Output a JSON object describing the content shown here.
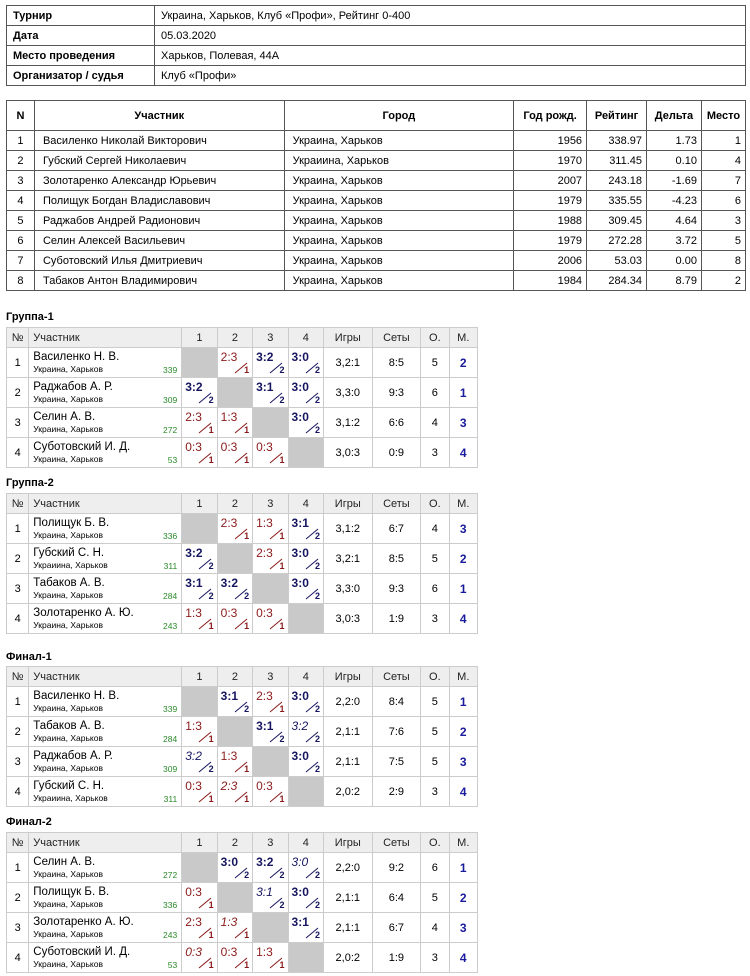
{
  "info": [
    {
      "key": "Турнир",
      "value": "Украина, Харьков, Клуб «Профи», Рейтинг 0-400"
    },
    {
      "key": "Дата",
      "value": "05.03.2020"
    },
    {
      "key": "Место проведения",
      "value": "Харьков, Полевая, 44А"
    },
    {
      "key": "Организатор / судья",
      "value": "Клуб «Профи»"
    }
  ],
  "players_table": {
    "headers": [
      "N",
      "Участник",
      "Город",
      "Год рожд.",
      "Рейтинг",
      "Дельта",
      "Место"
    ],
    "rows": [
      [
        "1",
        "Василенко Николай Викторович",
        "Украина, Харьков",
        "1956",
        "338.97",
        "1.73",
        "1"
      ],
      [
        "2",
        "Губский Сергей Николаевич",
        "Украиина, Харьков",
        "1970",
        "311.45",
        "0.10",
        "4"
      ],
      [
        "3",
        "Золотаренко Александр Юрьевич",
        "Украина, Харьков",
        "2007",
        "243.18",
        "-1.69",
        "7"
      ],
      [
        "4",
        "Полищук Богдан Владиславович",
        "Украина, Харьков",
        "1979",
        "335.55",
        "-4.23",
        "6"
      ],
      [
        "5",
        "Раджабов Андрей Радионович",
        "Украина, Харьков",
        "1988",
        "309.45",
        "4.64",
        "3"
      ],
      [
        "6",
        "Селин Алексей Васильевич",
        "Украина, Харьков",
        "1979",
        "272.28",
        "3.72",
        "5"
      ],
      [
        "7",
        "Суботовский Илья Дмитриевич",
        "Украина, Харьков",
        "2006",
        "53.03",
        "0.00",
        "8"
      ],
      [
        "8",
        "Табаков Антон Владимирович",
        "Украина, Харьков",
        "1984",
        "284.34",
        "8.79",
        "2"
      ]
    ]
  },
  "group_headers": [
    "№",
    "Участник",
    "1",
    "2",
    "3",
    "4",
    "Игры",
    "Сеты",
    "О.",
    "М."
  ],
  "groups": [
    {
      "title": "Группа-1",
      "rows": [
        {
          "n": "1",
          "name": "Василенко Н. В.",
          "city": "Украина, Харьков",
          "rating": "339",
          "cells": [
            null,
            {
              "s": "2:3",
              "r": "1",
              "w": false
            },
            {
              "s": "3:2",
              "r": "2",
              "w": true
            },
            {
              "s": "3:0",
              "r": "2",
              "w": true
            }
          ],
          "games": "3,2:1",
          "sets": "8:5",
          "pts": "5",
          "place": "2"
        },
        {
          "n": "2",
          "name": "Раджабов А. Р.",
          "city": "Украина, Харьков",
          "rating": "309",
          "cells": [
            {
              "s": "3:2",
              "r": "2",
              "w": true
            },
            null,
            {
              "s": "3:1",
              "r": "2",
              "w": true
            },
            {
              "s": "3:0",
              "r": "2",
              "w": true
            }
          ],
          "games": "3,3:0",
          "sets": "9:3",
          "pts": "6",
          "place": "1"
        },
        {
          "n": "3",
          "name": "Селин А. В.",
          "city": "Украина, Харьков",
          "rating": "272",
          "cells": [
            {
              "s": "2:3",
              "r": "1",
              "w": false
            },
            {
              "s": "1:3",
              "r": "1",
              "w": false
            },
            null,
            {
              "s": "3:0",
              "r": "2",
              "w": true
            }
          ],
          "games": "3,1:2",
          "sets": "6:6",
          "pts": "4",
          "place": "3"
        },
        {
          "n": "4",
          "name": "Суботовский И. Д.",
          "city": "Украина, Харьков",
          "rating": "53",
          "cells": [
            {
              "s": "0:3",
              "r": "1",
              "w": false
            },
            {
              "s": "0:3",
              "r": "1",
              "w": false
            },
            {
              "s": "0:3",
              "r": "1",
              "w": false
            },
            null
          ],
          "games": "3,0:3",
          "sets": "0:9",
          "pts": "3",
          "place": "4"
        }
      ]
    },
    {
      "title": "Группа-2",
      "rows": [
        {
          "n": "1",
          "name": "Полищук Б. В.",
          "city": "Украина, Харьков",
          "rating": "336",
          "cells": [
            null,
            {
              "s": "2:3",
              "r": "1",
              "w": false
            },
            {
              "s": "1:3",
              "r": "1",
              "w": false
            },
            {
              "s": "3:1",
              "r": "2",
              "w": true
            }
          ],
          "games": "3,1:2",
          "sets": "6:7",
          "pts": "4",
          "place": "3"
        },
        {
          "n": "2",
          "name": "Губский С. Н.",
          "city": "Украиина, Харьков",
          "rating": "311",
          "cells": [
            {
              "s": "3:2",
              "r": "2",
              "w": true
            },
            null,
            {
              "s": "2:3",
              "r": "1",
              "w": false
            },
            {
              "s": "3:0",
              "r": "2",
              "w": true
            }
          ],
          "games": "3,2:1",
          "sets": "8:5",
          "pts": "5",
          "place": "2"
        },
        {
          "n": "3",
          "name": "Табаков А. В.",
          "city": "Украина, Харьков",
          "rating": "284",
          "cells": [
            {
              "s": "3:1",
              "r": "2",
              "w": true
            },
            {
              "s": "3:2",
              "r": "2",
              "w": true
            },
            null,
            {
              "s": "3:0",
              "r": "2",
              "w": true
            }
          ],
          "games": "3,3:0",
          "sets": "9:3",
          "pts": "6",
          "place": "1"
        },
        {
          "n": "4",
          "name": "Золотаренко А. Ю.",
          "city": "Украина, Харьков",
          "rating": "243",
          "cells": [
            {
              "s": "1:3",
              "r": "1",
              "w": false
            },
            {
              "s": "0:3",
              "r": "1",
              "w": false
            },
            {
              "s": "0:3",
              "r": "1",
              "w": false
            },
            null
          ],
          "games": "3,0:3",
          "sets": "1:9",
          "pts": "3",
          "place": "4"
        }
      ]
    },
    {
      "title": "Финал-1",
      "rows": [
        {
          "n": "1",
          "name": "Василенко Н. В.",
          "city": "Украина, Харьков",
          "rating": "339",
          "cells": [
            null,
            {
              "s": "3:1",
              "r": "2",
              "w": true
            },
            {
              "s": "2:3",
              "r": "1",
              "w": false
            },
            {
              "s": "3:0",
              "r": "2",
              "w": true
            }
          ],
          "games": "2,2:0",
          "sets": "8:4",
          "pts": "5",
          "place": "1"
        },
        {
          "n": "2",
          "name": "Табаков А. В.",
          "city": "Украина, Харьков",
          "rating": "284",
          "cells": [
            {
              "s": "1:3",
              "r": "1",
              "w": false
            },
            null,
            {
              "s": "3:1",
              "r": "2",
              "w": true
            },
            {
              "s": "3:2",
              "r": "2",
              "w": true,
              "i": true
            }
          ],
          "games": "2,1:1",
          "sets": "7:6",
          "pts": "5",
          "place": "2"
        },
        {
          "n": "3",
          "name": "Раджабов А. Р.",
          "city": "Украина, Харьков",
          "rating": "309",
          "cells": [
            {
              "s": "3:2",
              "r": "2",
              "w": true,
              "i": true
            },
            {
              "s": "1:3",
              "r": "1",
              "w": false
            },
            null,
            {
              "s": "3:0",
              "r": "2",
              "w": true
            }
          ],
          "games": "2,1:1",
          "sets": "7:5",
          "pts": "5",
          "place": "3"
        },
        {
          "n": "4",
          "name": "Губский С. Н.",
          "city": "Украиина, Харьков",
          "rating": "311",
          "cells": [
            {
              "s": "0:3",
              "r": "1",
              "w": false
            },
            {
              "s": "2:3",
              "r": "1",
              "w": false,
              "i": true
            },
            {
              "s": "0:3",
              "r": "1",
              "w": false
            },
            null
          ],
          "games": "2,0:2",
          "sets": "2:9",
          "pts": "3",
          "place": "4"
        }
      ]
    },
    {
      "title": "Финал-2",
      "rows": [
        {
          "n": "1",
          "name": "Селин А. В.",
          "city": "Украина, Харьков",
          "rating": "272",
          "cells": [
            null,
            {
              "s": "3:0",
              "r": "2",
              "w": true
            },
            {
              "s": "3:2",
              "r": "2",
              "w": true
            },
            {
              "s": "3:0",
              "r": "2",
              "w": true,
              "i": true
            }
          ],
          "games": "2,2:0",
          "sets": "9:2",
          "pts": "6",
          "place": "1"
        },
        {
          "n": "2",
          "name": "Полищук Б. В.",
          "city": "Украина, Харьков",
          "rating": "336",
          "cells": [
            {
              "s": "0:3",
              "r": "1",
              "w": false
            },
            null,
            {
              "s": "3:1",
              "r": "2",
              "w": true,
              "i": true
            },
            {
              "s": "3:0",
              "r": "2",
              "w": true
            }
          ],
          "games": "2,1:1",
          "sets": "6:4",
          "pts": "5",
          "place": "2"
        },
        {
          "n": "3",
          "name": "Золотаренко А. Ю.",
          "city": "Украина, Харьков",
          "rating": "243",
          "cells": [
            {
              "s": "2:3",
              "r": "1",
              "w": false
            },
            {
              "s": "1:3",
              "r": "1",
              "w": false,
              "i": true
            },
            null,
            {
              "s": "3:1",
              "r": "2",
              "w": true
            }
          ],
          "games": "2,1:1",
          "sets": "6:7",
          "pts": "4",
          "place": "3"
        },
        {
          "n": "4",
          "name": "Суботовский И. Д.",
          "city": "Украина, Харьков",
          "rating": "53",
          "cells": [
            {
              "s": "0:3",
              "r": "1",
              "w": false,
              "i": true
            },
            {
              "s": "0:3",
              "r": "1",
              "w": false
            },
            {
              "s": "1:3",
              "r": "1",
              "w": false
            },
            null
          ],
          "games": "2,0:2",
          "sets": "1:9",
          "pts": "3",
          "place": "4"
        }
      ]
    }
  ]
}
